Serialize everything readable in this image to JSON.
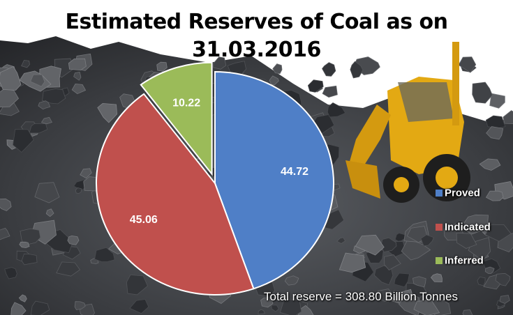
{
  "chart_data": {
    "type": "pie",
    "title_lines": [
      "Estimated Reserves of Coal as on",
      "31.03.2016"
    ],
    "categories": [
      "Proved",
      "Indicated",
      "Inferred"
    ],
    "values": [
      44.72,
      45.06,
      10.22
    ],
    "colors": [
      "#4f7fc7",
      "#c0504d",
      "#9bbb59"
    ],
    "exploded": "Inferred",
    "legend_position": "right",
    "annotation": "Total reserve = 308.80 Billion Tonnes"
  }
}
